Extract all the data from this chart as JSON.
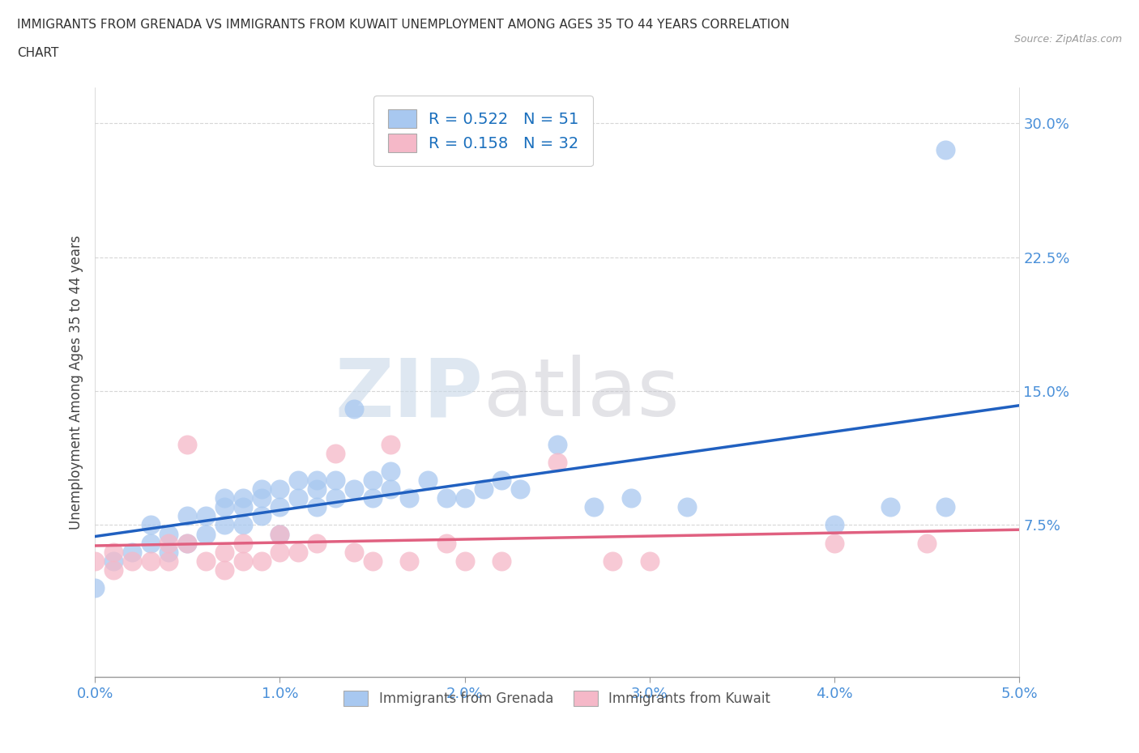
{
  "title_line1": "IMMIGRANTS FROM GRENADA VS IMMIGRANTS FROM KUWAIT UNEMPLOYMENT AMONG AGES 35 TO 44 YEARS CORRELATION",
  "title_line2": "CHART",
  "source": "Source: ZipAtlas.com",
  "ylabel": "Unemployment Among Ages 35 to 44 years",
  "xlim": [
    0.0,
    0.05
  ],
  "ylim": [
    -0.01,
    0.32
  ],
  "yticks": [
    0.075,
    0.15,
    0.225,
    0.3
  ],
  "ytick_labels": [
    "7.5%",
    "15.0%",
    "22.5%",
    "30.0%"
  ],
  "xticks": [
    0.0,
    0.01,
    0.02,
    0.03,
    0.04,
    0.05
  ],
  "xtick_labels": [
    "0.0%",
    "1.0%",
    "2.0%",
    "3.0%",
    "4.0%",
    "5.0%"
  ],
  "grenada_color": "#a8c8f0",
  "kuwait_color": "#f5b8c8",
  "grenada_line_color": "#2060c0",
  "kuwait_line_color": "#e06080",
  "R_grenada": 0.522,
  "N_grenada": 51,
  "R_kuwait": 0.158,
  "N_kuwait": 32,
  "background_color": "#ffffff",
  "watermark_zip": "ZIP",
  "watermark_atlas": "atlas",
  "grenada_x": [
    0.001,
    0.002,
    0.003,
    0.003,
    0.004,
    0.004,
    0.005,
    0.005,
    0.006,
    0.006,
    0.007,
    0.007,
    0.007,
    0.008,
    0.008,
    0.008,
    0.009,
    0.009,
    0.009,
    0.01,
    0.01,
    0.01,
    0.011,
    0.011,
    0.012,
    0.012,
    0.012,
    0.013,
    0.013,
    0.014,
    0.014,
    0.015,
    0.015,
    0.016,
    0.016,
    0.017,
    0.018,
    0.019,
    0.02,
    0.021,
    0.022,
    0.023,
    0.025,
    0.027,
    0.029,
    0.032,
    0.04,
    0.043,
    0.046,
    0.046,
    0.0
  ],
  "grenada_y": [
    0.055,
    0.06,
    0.065,
    0.075,
    0.06,
    0.07,
    0.065,
    0.08,
    0.07,
    0.08,
    0.075,
    0.085,
    0.09,
    0.075,
    0.085,
    0.09,
    0.08,
    0.09,
    0.095,
    0.07,
    0.085,
    0.095,
    0.09,
    0.1,
    0.085,
    0.095,
    0.1,
    0.09,
    0.1,
    0.095,
    0.14,
    0.09,
    0.1,
    0.095,
    0.105,
    0.09,
    0.1,
    0.09,
    0.09,
    0.095,
    0.1,
    0.095,
    0.12,
    0.085,
    0.09,
    0.085,
    0.075,
    0.085,
    0.085,
    0.285,
    0.04
  ],
  "kuwait_x": [
    0.0,
    0.001,
    0.001,
    0.002,
    0.003,
    0.004,
    0.004,
    0.005,
    0.005,
    0.006,
    0.007,
    0.007,
    0.008,
    0.008,
    0.009,
    0.01,
    0.01,
    0.011,
    0.012,
    0.013,
    0.014,
    0.015,
    0.016,
    0.017,
    0.019,
    0.02,
    0.022,
    0.025,
    0.028,
    0.03,
    0.04,
    0.045
  ],
  "kuwait_y": [
    0.055,
    0.05,
    0.06,
    0.055,
    0.055,
    0.055,
    0.065,
    0.065,
    0.12,
    0.055,
    0.05,
    0.06,
    0.055,
    0.065,
    0.055,
    0.06,
    0.07,
    0.06,
    0.065,
    0.115,
    0.06,
    0.055,
    0.12,
    0.055,
    0.065,
    0.055,
    0.055,
    0.11,
    0.055,
    0.055,
    0.065,
    0.065
  ]
}
